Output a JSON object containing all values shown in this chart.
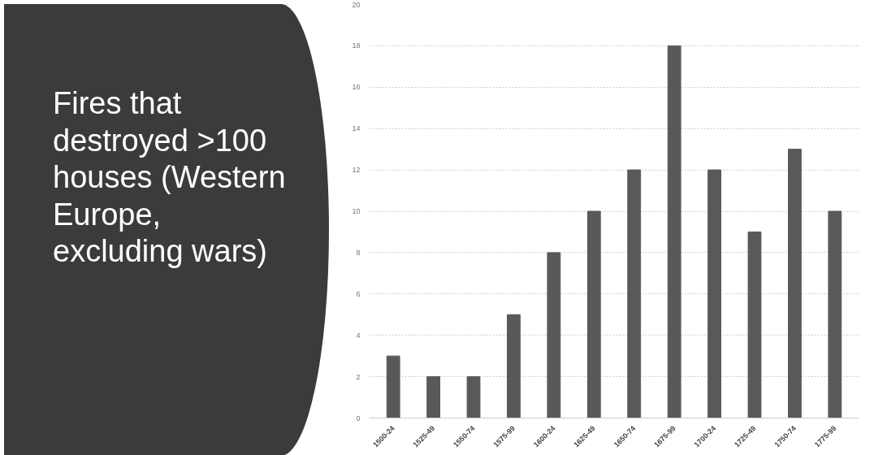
{
  "chart_data": {
    "type": "bar",
    "title": "Fires that destroyed >100 houses (Western Europe, excluding wars)",
    "categories": [
      "1500-24",
      "1525-49",
      "1550-74",
      "1575-99",
      "1600-24",
      "1625-49",
      "1650-74",
      "1675-99",
      "1700-24",
      "1725-49",
      "1750-74",
      "1775-99"
    ],
    "values": [
      3,
      2,
      2,
      5,
      8,
      10,
      12,
      18,
      12,
      9,
      13,
      10
    ],
    "color": "#595959",
    "ylim": [
      0,
      20
    ],
    "yticks": [
      0,
      2,
      4,
      6,
      8,
      10,
      12,
      14,
      16,
      18,
      20
    ],
    "grid": "y"
  }
}
